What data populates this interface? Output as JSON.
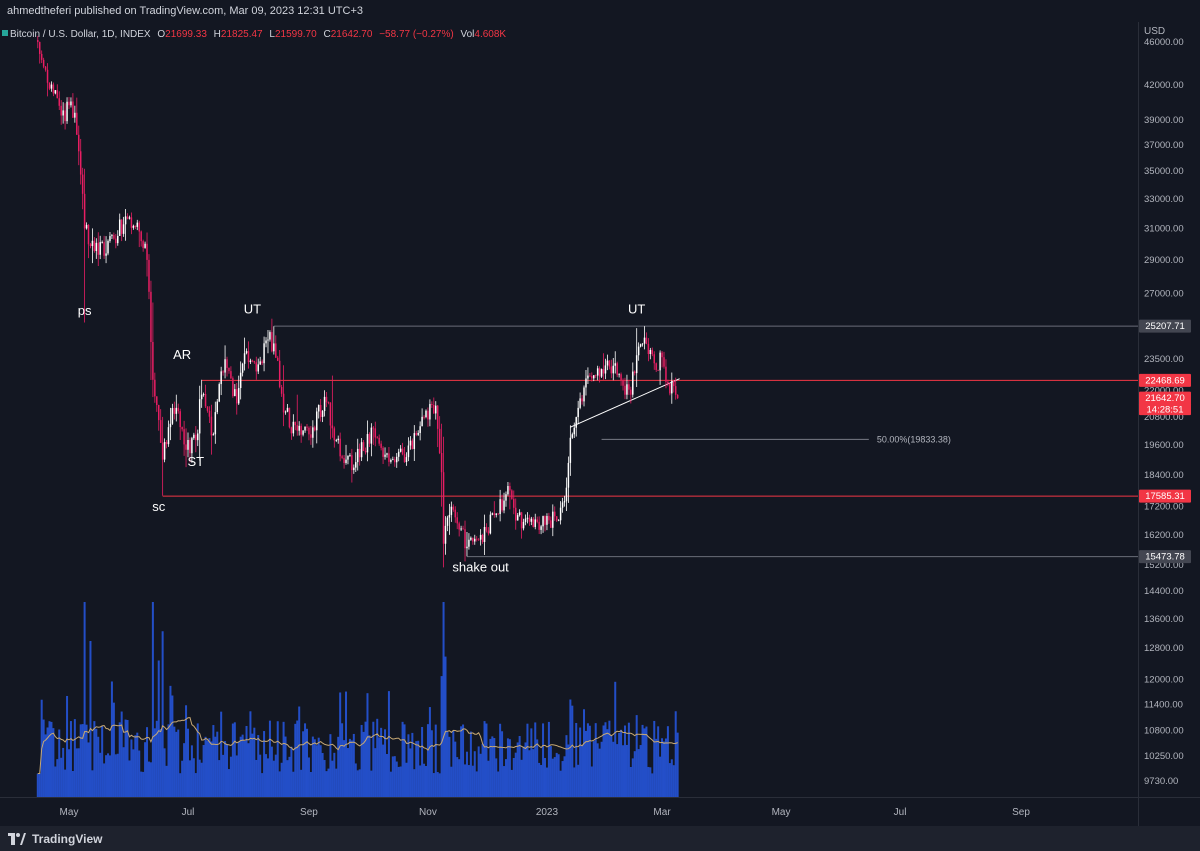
{
  "header": {
    "publisher": "ahmedtheferi",
    "published_text": "published on TradingView.com, Mar 09, 2023 12:31 UTC+3"
  },
  "footer": {
    "brand": "TradingView"
  },
  "colors": {
    "background": "#131722",
    "up": "#ffffff",
    "down": "#e91e63",
    "volume": "#2962ff",
    "volume_ma": "#c8a974",
    "level_red": "#f23645",
    "level_grey": "#6a6d78",
    "axis_text": "#b2b5be"
  },
  "chart_data": {
    "type": "candlestick",
    "symbol": "Bitcoin / U.S. Dollar, 1D, INDEX",
    "ohlc_legend": {
      "o_label": "O",
      "o": "21699.33",
      "h_label": "H",
      "h": "21825.47",
      "l_label": "L",
      "l": "21599.70",
      "c_label": "C",
      "c": "21642.70",
      "change": "−58.77 (−0.27%)",
      "vol_label": "Vol",
      "vol": "4.608K"
    },
    "currency_label": "USD",
    "y_scale": "log",
    "y_ticks": [
      "46000.00",
      "42000.00",
      "39000.00",
      "37000.00",
      "35000.00",
      "33000.00",
      "31000.00",
      "29000.00",
      "27000.00",
      "23500.00",
      "22000.00",
      "20800.00",
      "19600.00",
      "18400.00",
      "17200.00",
      "16200.00",
      "15200.00",
      "14400.00",
      "13600.00",
      "12800.00",
      "12000.00",
      "11400.00",
      "10800.00",
      "10250.00",
      "9730.00"
    ],
    "x_ticks": [
      "May",
      "Jul",
      "Sep",
      "Nov",
      "2023",
      "Mar",
      "May",
      "Jul",
      "Sep"
    ],
    "price_tags": [
      {
        "label": "25207.71",
        "kind": "grey"
      },
      {
        "label": "22468.69",
        "kind": "red"
      },
      {
        "label": "21642.70",
        "kind": "last"
      },
      {
        "label": "14:28:51",
        "kind": "countdown"
      },
      {
        "label": "17585.31",
        "kind": "red"
      },
      {
        "label": "15473.78",
        "kind": "grey"
      }
    ],
    "levels": [
      {
        "price": 25207.71,
        "from": "2022-08-14",
        "color": "grey"
      },
      {
        "price": 22468.69,
        "from": "2022-07-08",
        "color": "red"
      },
      {
        "price": 17585.31,
        "from": "2022-06-18",
        "color": "red"
      },
      {
        "price": 15473.78,
        "from": "2022-11-21",
        "color": "grey"
      }
    ],
    "fib_label": "50.00%(19833.38)",
    "fib_level": {
      "price": 19833.38,
      "from": "2023-01-29",
      "to": "2023-06-15"
    },
    "trendline": {
      "from": {
        "date": "2023-01-13",
        "price": 20350
      },
      "to": {
        "date": "2023-03-10",
        "price": 22550
      }
    },
    "annotations": [
      {
        "text": "ps",
        "date": "2022-05-09",
        "price": 25800
      },
      {
        "text": "AR",
        "date": "2022-06-28",
        "price": 23500
      },
      {
        "text": "UT",
        "date": "2022-08-03",
        "price": 25900
      },
      {
        "text": "ST",
        "date": "2022-07-05",
        "price": 18750
      },
      {
        "text": "sc",
        "date": "2022-06-16",
        "price": 17050
      },
      {
        "text": "UT",
        "date": "2023-02-16",
        "price": 25900
      },
      {
        "text": "shake out",
        "date": "2022-11-28",
        "price": 15000
      }
    ],
    "anchors": [
      [
        "2022-04-15",
        46000,
        46600,
        45400
      ],
      [
        "2022-04-20",
        42200,
        43000,
        41000
      ],
      [
        "2022-04-28",
        39800,
        40500,
        38700
      ],
      [
        "2022-05-04",
        39600,
        40200,
        38900
      ],
      [
        "2022-05-06",
        36500,
        37000,
        35800
      ],
      [
        "2022-05-09",
        31000,
        34000,
        25400
      ],
      [
        "2022-05-13",
        30200,
        31000,
        28800
      ],
      [
        "2022-05-20",
        29400,
        30500,
        28800
      ],
      [
        "2022-05-30",
        31800,
        32300,
        30200
      ],
      [
        "2022-06-06",
        30800,
        31500,
        29800
      ],
      [
        "2022-06-10",
        29000,
        29800,
        28000
      ],
      [
        "2022-06-13",
        22500,
        26500,
        21800
      ],
      [
        "2022-06-18",
        19000,
        20800,
        17600
      ],
      [
        "2022-06-22",
        20500,
        21200,
        19800
      ],
      [
        "2022-06-25",
        21200,
        21800,
        20600
      ],
      [
        "2022-06-30",
        19400,
        20300,
        18700
      ],
      [
        "2022-07-05",
        19800,
        20400,
        19300
      ],
      [
        "2022-07-08",
        21800,
        22500,
        21200
      ],
      [
        "2022-07-13",
        20000,
        20700,
        19200
      ],
      [
        "2022-07-20",
        23500,
        24200,
        22800
      ],
      [
        "2022-07-26",
        21400,
        22300,
        20900
      ],
      [
        "2022-07-30",
        23800,
        24600,
        23200
      ],
      [
        "2022-08-05",
        22900,
        23500,
        22500
      ],
      [
        "2022-08-11",
        24500,
        25000,
        23800
      ],
      [
        "2022-08-14",
        24300,
        25200,
        23900
      ],
      [
        "2022-08-19",
        21000,
        23200,
        20800
      ],
      [
        "2022-08-26",
        20200,
        21800,
        20100
      ],
      [
        "2022-09-02",
        19900,
        20400,
        19600
      ],
      [
        "2022-09-09",
        21700,
        21800,
        21000
      ],
      [
        "2022-09-13",
        20300,
        22700,
        19900
      ],
      [
        "2022-09-20",
        19000,
        19600,
        18800
      ],
      [
        "2022-09-25",
        18900,
        19300,
        18600
      ],
      [
        "2022-10-04",
        20300,
        20400,
        19600
      ],
      [
        "2022-10-10",
        19200,
        19500,
        19000
      ],
      [
        "2022-10-21",
        19100,
        19300,
        18800
      ],
      [
        "2022-10-29",
        20800,
        21000,
        20600
      ],
      [
        "2022-11-05",
        21300,
        21500,
        20900
      ],
      [
        "2022-11-08",
        18500,
        20500,
        17200
      ],
      [
        "2022-11-09",
        15900,
        18600,
        15700
      ],
      [
        "2022-11-12",
        16900,
        17300,
        16200
      ],
      [
        "2022-11-16",
        16600,
        17000,
        16400
      ],
      [
        "2022-11-21",
        15800,
        16300,
        15480
      ],
      [
        "2022-11-28",
        16200,
        16400,
        16000
      ],
      [
        "2022-12-05",
        16900,
        17400,
        16800
      ],
      [
        "2022-12-13",
        17800,
        18100,
        17100
      ],
      [
        "2022-12-16",
        16700,
        17500,
        16600
      ],
      [
        "2022-12-22",
        16800,
        17000,
        16600
      ],
      [
        "2022-12-31",
        16550,
        16700,
        16500
      ],
      [
        "2023-01-05",
        16850,
        17000,
        16700
      ],
      [
        "2023-01-10",
        17400,
        17600,
        17200
      ],
      [
        "2023-01-13",
        19900,
        20000,
        18800
      ],
      [
        "2023-01-17",
        21200,
        21400,
        20800
      ],
      [
        "2023-01-22",
        22700,
        23100,
        22300
      ],
      [
        "2023-01-30",
        22800,
        23800,
        22500
      ],
      [
        "2023-02-05",
        23300,
        23900,
        22800
      ],
      [
        "2023-02-10",
        21800,
        22400,
        21600
      ],
      [
        "2023-02-13",
        21800,
        22000,
        21400
      ],
      [
        "2023-02-16",
        23700,
        25100,
        23500
      ],
      [
        "2023-02-20",
        24600,
        25208,
        24200
      ],
      [
        "2023-02-25",
        23300,
        23900,
        23000
      ],
      [
        "2023-03-01",
        23600,
        23900,
        23100
      ],
      [
        "2023-03-03",
        22400,
        23500,
        22100
      ],
      [
        "2023-03-07",
        22200,
        22500,
        21900
      ],
      [
        "2023-03-09",
        21642.7,
        21825.47,
        21599.7
      ]
    ],
    "volume_spikes": [
      [
        "2022-05-09",
        1.0
      ],
      [
        "2022-05-12",
        0.8
      ],
      [
        "2022-06-13",
        1.0
      ],
      [
        "2022-06-16",
        0.7
      ],
      [
        "2022-06-18",
        0.85
      ],
      [
        "2022-11-09",
        1.0
      ],
      [
        "2022-11-10",
        0.72
      ],
      [
        "2022-11-08",
        0.62
      ],
      [
        "2023-01-13",
        0.5
      ],
      [
        "2023-01-20",
        0.45
      ],
      [
        "2023-02-16",
        0.42
      ],
      [
        "2023-03-03",
        0.3
      ]
    ]
  }
}
